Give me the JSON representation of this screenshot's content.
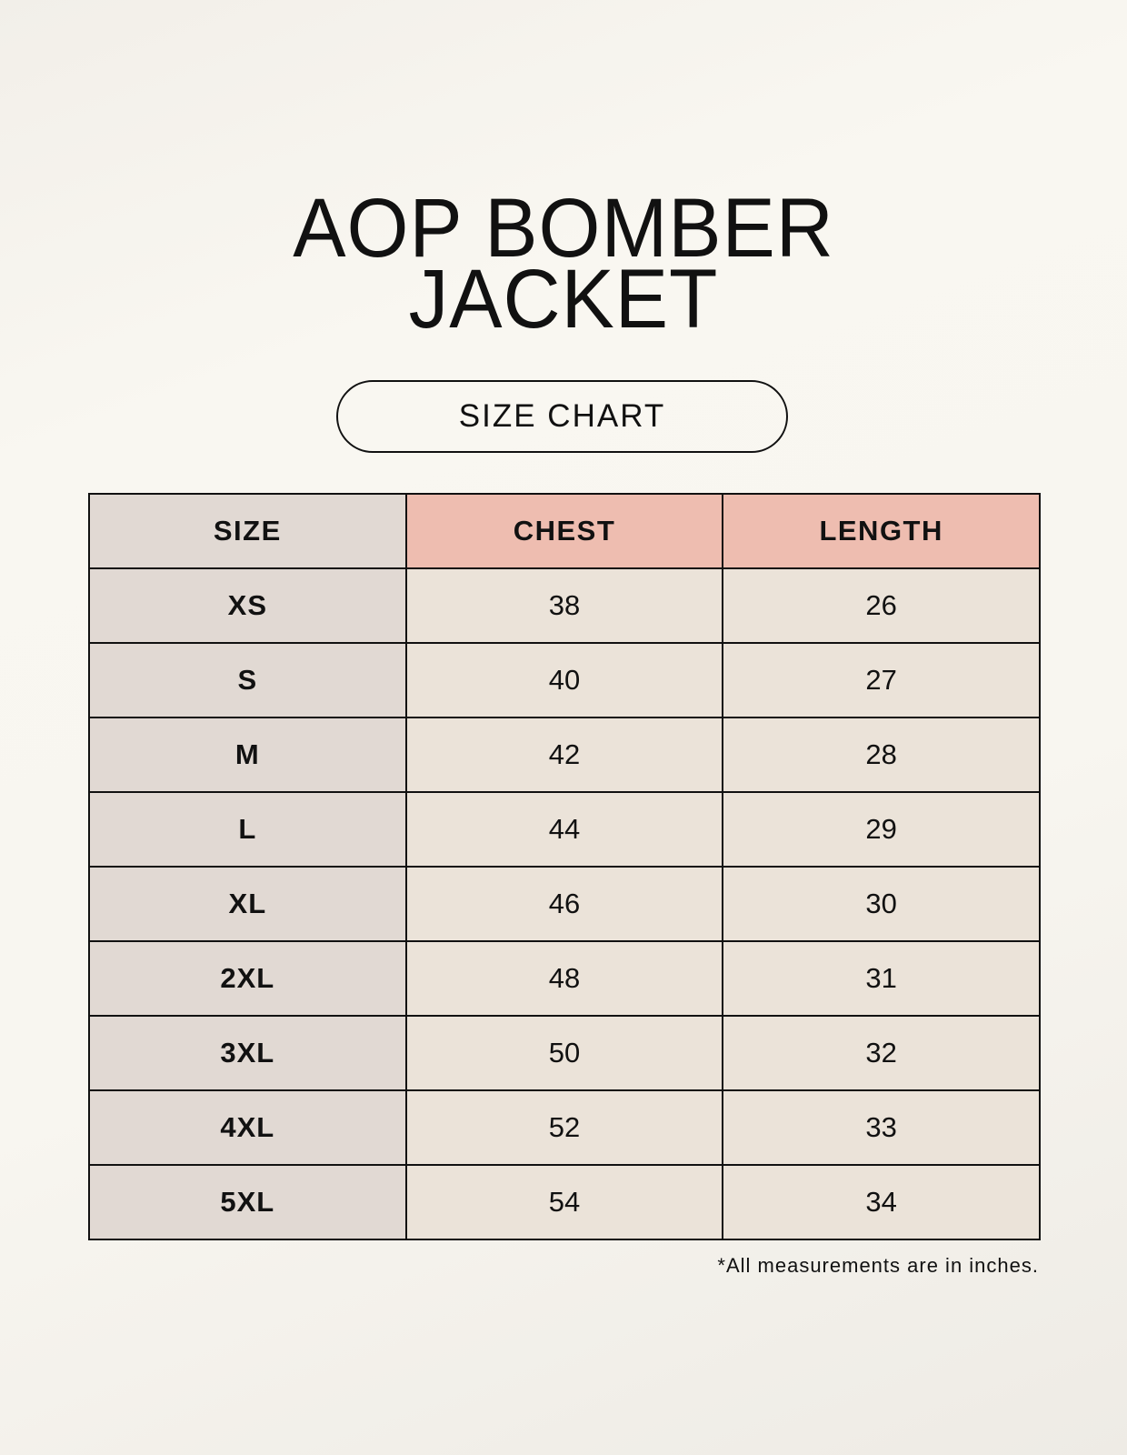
{
  "title": {
    "line1": "AOP BOMBER",
    "line2": "JACKET"
  },
  "subtitle": "SIZE CHART",
  "colors": {
    "size_column": "#e1d9d3",
    "header_accent": "#eebdb0",
    "cell": "#ebe3d9"
  },
  "table": {
    "headers": [
      "SIZE",
      "CHEST",
      "LENGTH"
    ],
    "rows": [
      [
        "XS",
        "38",
        "26"
      ],
      [
        "S",
        "40",
        "27"
      ],
      [
        "M",
        "42",
        "28"
      ],
      [
        "L",
        "44",
        "29"
      ],
      [
        "XL",
        "46",
        "30"
      ],
      [
        "2XL",
        "48",
        "31"
      ],
      [
        "3XL",
        "50",
        "32"
      ],
      [
        "4XL",
        "52",
        "33"
      ],
      [
        "5XL",
        "54",
        "34"
      ]
    ]
  },
  "footnote": "*All measurements are in inches."
}
